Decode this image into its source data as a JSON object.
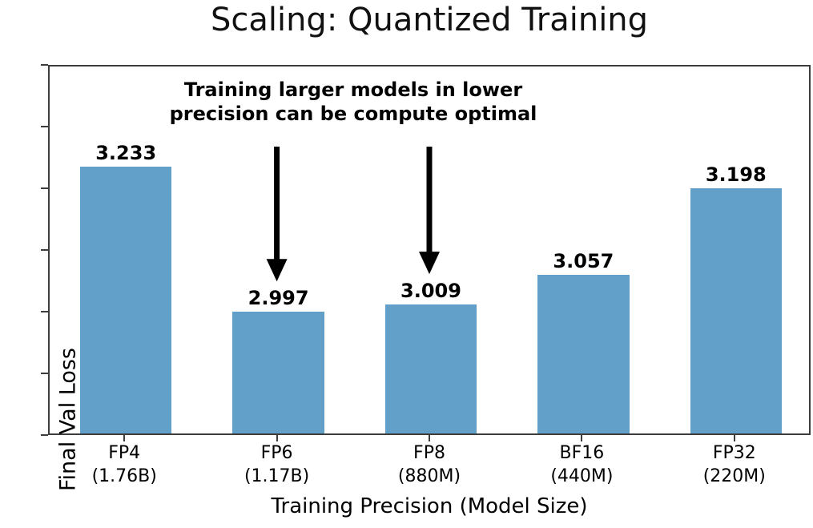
{
  "figure": {
    "title": "Scaling: Quantized Training"
  },
  "chart_data": {
    "type": "bar",
    "title": "Scaling: Quantized Training",
    "xlabel": "Training Precision (Model Size)",
    "ylabel": "Final Val Loss",
    "categories": [
      "FP4 (1.76B)",
      "FP6 (1.17B)",
      "FP8 (880M)",
      "BF16 (440M)",
      "FP32 (220M)"
    ],
    "tick_line1": [
      "FP4",
      "FP6",
      "FP8",
      "BF16",
      "FP32"
    ],
    "tick_line2": [
      "(1.76B)",
      "(1.17B)",
      "(880M)",
      "(440M)",
      "(220M)"
    ],
    "values": [
      3.233,
      2.997,
      3.009,
      3.057,
      3.198
    ],
    "bar_labels": [
      "3.233",
      "2.997",
      "3.009",
      "3.057",
      "3.198"
    ],
    "ylim": [
      2.8,
      3.4
    ],
    "yticks": [
      2.8,
      2.9,
      3.0,
      3.1,
      3.2,
      3.3,
      3.4
    ],
    "ytick_labels_shown": false,
    "grid": false,
    "legend": false,
    "bar_width_frac": 0.6,
    "annotation": {
      "text_lines": [
        "Training larger models in lower",
        "precision can be compute optimal"
      ],
      "arrow_target_categories": [
        "FP6 (1.17B)",
        "FP8 (880M)"
      ],
      "arrow_target_indices": [
        1,
        2
      ]
    }
  },
  "colors": {
    "bar": "#62A0CA",
    "axis": "#3D3D3D",
    "text": "#000000",
    "background": "#FFFFFF"
  }
}
